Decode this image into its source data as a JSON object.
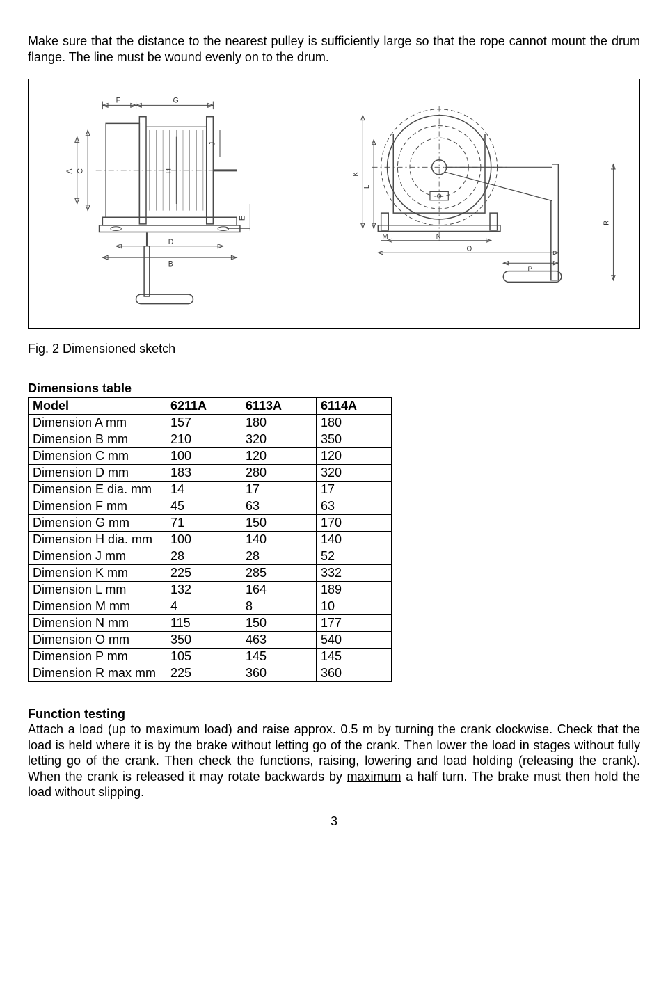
{
  "intro_paragraph": "Make sure that the distance to the nearest pulley is sufficiently large so that the rope cannot mount the drum flange. The line must be wound evenly on to the drum.",
  "fig_caption": "Fig. 2 Dimensioned sketch",
  "table_title": "Dimensions table",
  "table": {
    "header_label": "Model",
    "models": [
      "6211A",
      "6113A",
      "6114A"
    ],
    "rows": [
      {
        "label": "Dimension A   mm",
        "vals": [
          "157",
          "180",
          "180"
        ]
      },
      {
        "label": "Dimension B   mm",
        "vals": [
          "210",
          "320",
          "350"
        ]
      },
      {
        "label": "Dimension C   mm",
        "vals": [
          "100",
          "120",
          "120"
        ]
      },
      {
        "label": "Dimension D   mm",
        "vals": [
          "183",
          "280",
          "320"
        ]
      },
      {
        "label": "Dimension E dia. mm",
        "vals": [
          "14",
          "17",
          "17"
        ]
      },
      {
        "label": "Dimension F   mm",
        "vals": [
          "45",
          "63",
          "63"
        ]
      },
      {
        "label": "Dimension G   mm",
        "vals": [
          "71",
          "150",
          "170"
        ]
      },
      {
        "label": "Dimension H dia. mm",
        "vals": [
          "100",
          "140",
          "140"
        ]
      },
      {
        "label": "Dimension J    mm",
        "vals": [
          "28",
          "28",
          "52"
        ]
      },
      {
        "label": "Dimension K   mm",
        "vals": [
          "225",
          "285",
          "332"
        ]
      },
      {
        "label": "Dimension L    mm",
        "vals": [
          "132",
          "164",
          "189"
        ]
      },
      {
        "label": "Dimension M  mm",
        "vals": [
          "4",
          "8",
          "10"
        ]
      },
      {
        "label": "Dimension N   mm",
        "vals": [
          "115",
          "150",
          "177"
        ]
      },
      {
        "label": "Dimension O   mm",
        "vals": [
          "350",
          "463",
          "540"
        ]
      },
      {
        "label": "Dimension P   mm",
        "vals": [
          "105",
          "145",
          "145"
        ]
      },
      {
        "label": "Dimension R max mm",
        "vals": [
          "225",
          "360",
          "360"
        ]
      }
    ]
  },
  "function_title": "Function testing",
  "function_body_before": "Attach a load (up to maximum load) and raise approx. 0.5 m by turning the crank clockwise. Check that the load is held where it is by the brake without letting go of the crank. Then lower the load in stages without fully letting go of the crank. Then check the functions, raising, lowering and load holding (releasing the crank). When the crank is released it may rotate backwards by ",
  "function_underlined": "maximum",
  "function_body_after": " a half turn. The brake must then hold the load without slipping.",
  "page_number": "3",
  "diagram_left_labels": {
    "A": "A",
    "B": "B",
    "C": "C",
    "D": "D",
    "E": "E",
    "F": "F",
    "G": "G",
    "H": "H",
    "J": "J"
  },
  "diagram_right_labels": {
    "K": "K",
    "L": "L",
    "M": "M",
    "N": "N",
    "O": "O",
    "P": "P",
    "R": "R"
  },
  "diagram_style": {
    "stroke_color": "#4a4a4a",
    "dash_pattern": "6 4"
  }
}
